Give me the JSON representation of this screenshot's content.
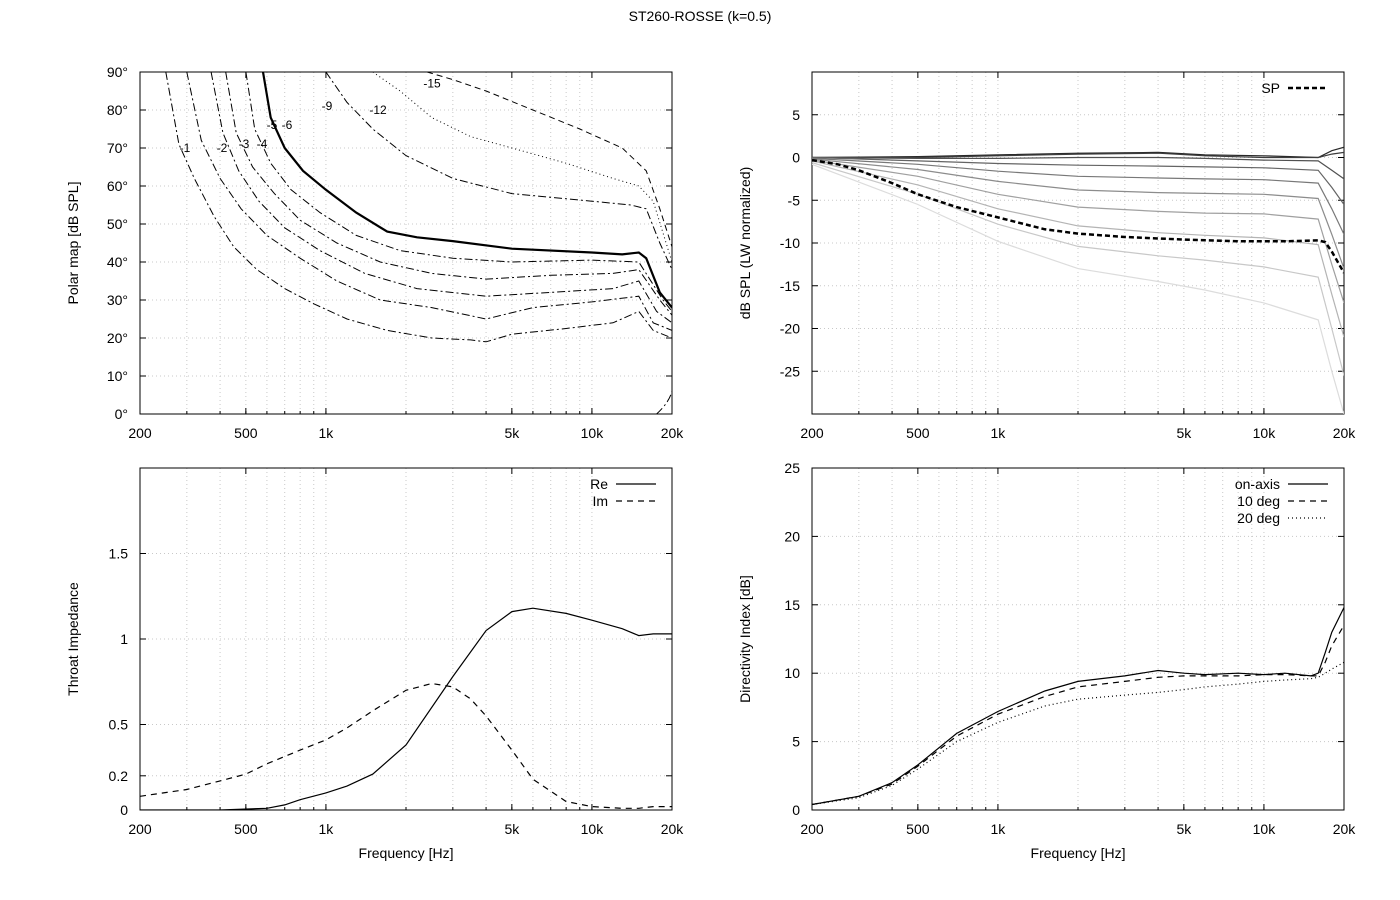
{
  "figure_title": "ST260-ROSSE (k=0.5)",
  "x_ticks": [
    "200",
    "500",
    "1k",
    "5k",
    "10k",
    "20k"
  ],
  "xlabel": "Frequency [Hz]",
  "chart_data": [
    {
      "id": "polar",
      "type": "contour",
      "title": "",
      "xlabel": "",
      "ylabel": "Polar map [dB SPL]",
      "x_scale": "log",
      "xlim": [
        200,
        20000
      ],
      "ylim": [
        0,
        90
      ],
      "y_ticks": [
        "0°",
        "10°",
        "20°",
        "30°",
        "40°",
        "50°",
        "60°",
        "70°",
        "80°",
        "90°"
      ],
      "grid": true,
      "contours": [
        {
          "level": "-1",
          "x": [
            250,
            280,
            320,
            380,
            450,
            550,
            700,
            900,
            1200,
            1700,
            2500,
            3500,
            4000,
            5000,
            8000,
            12000,
            15000,
            17000,
            20000
          ],
          "y": [
            90,
            71,
            62,
            52,
            44,
            38,
            33,
            29,
            25,
            22,
            20,
            19.5,
            19,
            21,
            22.5,
            24,
            27,
            22,
            20
          ]
        },
        {
          "level": "-2",
          "x": [
            300,
            340,
            400,
            480,
            600,
            800,
            1100,
            1600,
            2500,
            4000,
            6000,
            10000,
            15000,
            17000,
            20000
          ],
          "y": [
            90,
            72,
            62,
            54,
            47,
            41,
            35,
            30,
            28,
            25,
            28,
            29.5,
            31,
            24,
            22
          ]
        },
        {
          "level": "-3",
          "x": [
            370,
            410,
            470,
            560,
            700,
            950,
            1400,
            2200,
            4000,
            7000,
            12000,
            15000,
            17500,
            20000
          ],
          "y": [
            90,
            74,
            64,
            56,
            49,
            43,
            37,
            33,
            31,
            32,
            33,
            35,
            27,
            24
          ]
        },
        {
          "level": "-4",
          "x": [
            420,
            460,
            530,
            640,
            800,
            1100,
            1600,
            2500,
            4000,
            7000,
            12000,
            15000,
            18000,
            20000
          ],
          "y": [
            90,
            74,
            65,
            58,
            51,
            45,
            40,
            37,
            35.5,
            36.5,
            37,
            38,
            30,
            26
          ]
        },
        {
          "level": "-5",
          "x": [
            500,
            540,
            620,
            740,
            950,
            1300,
            1900,
            3000,
            5000,
            10000,
            15000,
            18500,
            20000
          ],
          "y": [
            90,
            75,
            66,
            59,
            53,
            47,
            43,
            41,
            40,
            40.5,
            40,
            30,
            27
          ]
        },
        {
          "level": "-6",
          "x": [
            580,
            620,
            700,
            820,
            1000,
            1300,
            1700,
            2200,
            3000,
            5000,
            10000,
            13000,
            15000,
            16000,
            18000,
            20000
          ],
          "y": [
            90,
            78,
            70,
            64,
            59,
            53,
            48,
            46.5,
            45.5,
            43.5,
            42.5,
            42,
            42.5,
            41,
            32,
            28
          ]
        },
        {
          "level": "-9",
          "x": [
            1000,
            1200,
            1500,
            2000,
            3000,
            5000,
            10000,
            14000,
            16000,
            18000,
            20000
          ],
          "y": [
            90,
            82,
            75,
            68,
            62,
            58,
            56,
            55,
            54,
            45,
            38
          ]
        },
        {
          "level": "-12",
          "x": [
            1500,
            1900,
            2500,
            3500,
            5000,
            8000,
            12000,
            15000,
            17000,
            19000,
            20000
          ],
          "y": [
            90,
            85,
            78,
            73,
            70,
            66,
            62,
            60,
            56,
            45,
            40
          ]
        },
        {
          "level": "-15",
          "x": [
            2400,
            3000,
            4000,
            6000,
            9000,
            13000,
            16000,
            18000,
            20000
          ],
          "y": [
            90,
            88,
            85,
            80,
            75,
            70,
            64,
            54,
            44
          ]
        }
      ]
    },
    {
      "id": "spl",
      "type": "line",
      "title": "",
      "xlabel": "",
      "ylabel": "dB SPL (LW normalized)",
      "x_scale": "log",
      "xlim": [
        200,
        20000
      ],
      "ylim": [
        -30,
        10
      ],
      "y_ticks": [
        "-25",
        "-20",
        "-15",
        "-10",
        "-5",
        "0",
        "5"
      ],
      "grid": true,
      "legend": "top-right",
      "series": [
        {
          "name": "SP",
          "x": [
            200,
            250,
            300,
            400,
            500,
            700,
            1000,
            1500,
            2000,
            3000,
            5000,
            8000,
            12000,
            16000,
            17000,
            18000,
            20000
          ],
          "y": [
            -0.3,
            -0.8,
            -1.5,
            -3,
            -4.3,
            -5.8,
            -7,
            -8.4,
            -8.9,
            -9.3,
            -9.6,
            -9.8,
            -9.8,
            -9.7,
            -9.9,
            -11,
            -13.5
          ]
        }
      ],
      "angle_curves": [
        {
          "angle": "0",
          "x": [
            200,
            500,
            1000,
            2000,
            4000,
            6000,
            10000,
            16000,
            18000,
            20000
          ],
          "y": [
            0,
            0.1,
            0.3,
            0.5,
            0.6,
            0.3,
            0.2,
            0,
            0.8,
            1.2
          ]
        },
        {
          "angle": "10",
          "x": [
            200,
            500,
            1000,
            2000,
            4000,
            6000,
            10000,
            16000,
            18000,
            20000
          ],
          "y": [
            0,
            0,
            0.2,
            0.4,
            0.5,
            0.2,
            0,
            0,
            0.4,
            0.6
          ]
        },
        {
          "angle": "20",
          "x": [
            200,
            500,
            1000,
            2000,
            4000,
            6000,
            10000,
            16000,
            18000,
            20000
          ],
          "y": [
            0,
            -0.1,
            -0.1,
            0,
            0,
            -0.1,
            -0.3,
            -0.4,
            -1.5,
            -2.5
          ]
        },
        {
          "angle": "30",
          "x": [
            200,
            500,
            1000,
            2000,
            4000,
            6000,
            10000,
            16000,
            18000,
            20000
          ],
          "y": [
            0,
            -0.4,
            -0.7,
            -0.9,
            -1,
            -1.1,
            -1.2,
            -1.5,
            -3.5,
            -5.5
          ]
        },
        {
          "angle": "40",
          "x": [
            200,
            500,
            1000,
            2000,
            4000,
            6000,
            10000,
            16000,
            18000,
            20000
          ],
          "y": [
            -0.1,
            -0.8,
            -1.6,
            -2.2,
            -2.4,
            -2.5,
            -2.6,
            -3,
            -6,
            -9
          ]
        },
        {
          "angle": "50",
          "x": [
            200,
            500,
            1000,
            2000,
            4000,
            6000,
            10000,
            16000,
            18000,
            20000
          ],
          "y": [
            -0.2,
            -1.4,
            -2.8,
            -3.8,
            -4.1,
            -4.2,
            -4.3,
            -4.8,
            -9,
            -13
          ]
        },
        {
          "angle": "60",
          "x": [
            200,
            500,
            1000,
            2000,
            4000,
            6000,
            10000,
            16000,
            18000,
            20000
          ],
          "y": [
            -0.3,
            -2.2,
            -4.3,
            -5.8,
            -6.3,
            -6.5,
            -6.6,
            -7.2,
            -12.5,
            -17
          ]
        },
        {
          "angle": "70",
          "x": [
            200,
            500,
            1000,
            2000,
            4000,
            6000,
            10000,
            16000,
            18000,
            20000
          ],
          "y": [
            -0.4,
            -3.2,
            -6,
            -8,
            -8.8,
            -9.1,
            -9.4,
            -10.2,
            -16,
            -21
          ]
        },
        {
          "angle": "80",
          "x": [
            200,
            500,
            1000,
            2000,
            4000,
            6000,
            10000,
            16000,
            18000,
            20000
          ],
          "y": [
            -0.6,
            -4.3,
            -7.8,
            -10.4,
            -11.5,
            -12,
            -12.8,
            -14,
            -20,
            -25.5
          ]
        },
        {
          "angle": "90",
          "x": [
            200,
            500,
            1000,
            2000,
            4000,
            6000,
            10000,
            16000,
            18000,
            20000
          ],
          "y": [
            -0.8,
            -5.5,
            -9.8,
            -13,
            -14.5,
            -15.5,
            -17,
            -19,
            -25,
            -30
          ]
        }
      ]
    },
    {
      "id": "impedance",
      "type": "line",
      "title": "",
      "xlabel": "Frequency [Hz]",
      "ylabel": "Throat Impedance",
      "x_scale": "log",
      "xlim": [
        200,
        20000
      ],
      "ylim": [
        0,
        2
      ],
      "y_ticks": [
        "0",
        "0.2",
        "0.5",
        "1",
        "1.5"
      ],
      "grid": true,
      "legend": "top-right",
      "series": [
        {
          "name": "Re",
          "x": [
            200,
            400,
            600,
            700,
            800,
            1000,
            1200,
            1500,
            2000,
            3000,
            4000,
            5000,
            6000,
            8000,
            10000,
            13000,
            15000,
            17000,
            20000
          ],
          "y": [
            0,
            0,
            0.01,
            0.03,
            0.06,
            0.1,
            0.14,
            0.21,
            0.38,
            0.78,
            1.05,
            1.16,
            1.18,
            1.15,
            1.11,
            1.06,
            1.02,
            1.03,
            1.03
          ]
        },
        {
          "name": "Im",
          "x": [
            200,
            300,
            400,
            500,
            600,
            800,
            1000,
            1200,
            1500,
            2000,
            2500,
            3000,
            3500,
            4000,
            5000,
            6000,
            8000,
            10000,
            13000,
            15000,
            17000,
            20000
          ],
          "y": [
            0.08,
            0.12,
            0.17,
            0.21,
            0.27,
            0.35,
            0.41,
            0.48,
            0.58,
            0.7,
            0.74,
            0.72,
            0.65,
            0.55,
            0.35,
            0.18,
            0.05,
            0.02,
            0.01,
            0.01,
            0.02,
            0.02
          ]
        }
      ]
    },
    {
      "id": "di",
      "type": "line",
      "title": "",
      "xlabel": "Frequency [Hz]",
      "ylabel": "Directivity Index [dB]",
      "x_scale": "log",
      "xlim": [
        200,
        20000
      ],
      "ylim": [
        0,
        25
      ],
      "y_ticks": [
        "0",
        "5",
        "10",
        "15",
        "20",
        "25"
      ],
      "grid": true,
      "legend": "top-right",
      "series": [
        {
          "name": "on-axis",
          "x": [
            200,
            300,
            400,
            500,
            700,
            1000,
            1500,
            2000,
            3000,
            4000,
            5000,
            6000,
            8000,
            10000,
            12000,
            15000,
            16000,
            17000,
            18000,
            20000
          ],
          "y": [
            0.4,
            1,
            2,
            3.3,
            5.6,
            7.2,
            8.7,
            9.4,
            9.8,
            10.2,
            10,
            9.9,
            10,
            9.9,
            10,
            9.8,
            10,
            11.5,
            13,
            14.8
          ]
        },
        {
          "name": "10 deg",
          "x": [
            200,
            300,
            400,
            500,
            700,
            1000,
            1500,
            2000,
            3000,
            4000,
            5000,
            6000,
            8000,
            10000,
            12000,
            15000,
            16000,
            17000,
            18000,
            20000
          ],
          "y": [
            0.4,
            1,
            1.9,
            3.2,
            5.4,
            7,
            8.3,
            9,
            9.4,
            9.7,
            9.8,
            9.8,
            9.8,
            9.9,
            9.9,
            9.8,
            9.8,
            10.8,
            12,
            13.5
          ]
        },
        {
          "name": "20 deg",
          "x": [
            200,
            300,
            400,
            500,
            700,
            1000,
            1500,
            2000,
            3000,
            4000,
            5000,
            6000,
            8000,
            10000,
            12000,
            15000,
            16000,
            17000,
            18000,
            20000
          ],
          "y": [
            0.4,
            0.9,
            1.8,
            3,
            5,
            6.4,
            7.6,
            8.1,
            8.4,
            8.6,
            8.8,
            9,
            9.2,
            9.4,
            9.5,
            9.6,
            9.7,
            10,
            10.3,
            10.8
          ]
        }
      ]
    }
  ]
}
